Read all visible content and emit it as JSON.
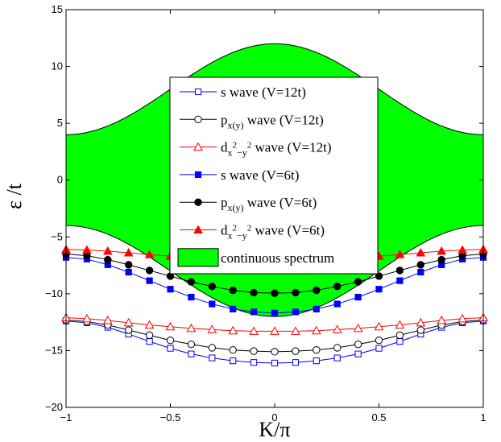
{
  "chart_data": {
    "type": "line",
    "xlabel": "K/π",
    "ylabel": "ε /t",
    "xlim": [
      -1,
      1
    ],
    "ylim": [
      -20,
      15
    ],
    "x_ticks": [
      "−1",
      "−0.5",
      "0",
      "0.5",
      "1"
    ],
    "y_ticks": [
      "15",
      "10",
      "5",
      "0",
      "−5",
      "−10",
      "−15",
      "−20"
    ],
    "grid": false,
    "legend_position": "center",
    "colors": {
      "blue": "#0000ff",
      "black": "#000000",
      "red": "#ff0000",
      "band": "#00ff00"
    },
    "band": {
      "name": "continuous spectrum",
      "upper": "4+4cos²(Kπ/2)",
      "lower": "−4−8cos²(Kπ/2)",
      "x_samples": [
        -1,
        1
      ]
    },
    "x": [
      -1.0,
      -0.9,
      -0.8,
      -0.7,
      -0.6,
      -0.5,
      -0.4,
      -0.3,
      -0.2,
      -0.1,
      0.0,
      0.1,
      0.2,
      0.3,
      0.4,
      0.5,
      0.6,
      0.7,
      0.8,
      0.9,
      1.0
    ],
    "series": [
      {
        "name": "s wave (V=12t)",
        "color": "#0000ff",
        "marker": "square-open",
        "values": [
          -12.4,
          -12.55,
          -12.95,
          -13.55,
          -14.2,
          -14.8,
          -15.3,
          -15.65,
          -15.9,
          -16.05,
          -16.1,
          -16.05,
          -15.9,
          -15.65,
          -15.3,
          -14.8,
          -14.2,
          -13.55,
          -12.95,
          -12.55,
          -12.4
        ]
      },
      {
        "name": "p_x(y) wave (V=12t)",
        "color": "#000000",
        "marker": "circle-open",
        "values": [
          -12.3,
          -12.45,
          -12.75,
          -13.2,
          -13.65,
          -14.1,
          -14.45,
          -14.75,
          -14.95,
          -15.05,
          -15.1,
          -15.05,
          -14.95,
          -14.75,
          -14.45,
          -14.1,
          -13.65,
          -13.2,
          -12.75,
          -12.45,
          -12.3
        ]
      },
      {
        "name": "d_x²−y² wave (V=12t)",
        "color": "#ff0000",
        "marker": "triangle-open",
        "values": [
          -12.1,
          -12.2,
          -12.35,
          -12.55,
          -12.75,
          -12.9,
          -13.05,
          -13.15,
          -13.25,
          -13.3,
          -13.3,
          -13.3,
          -13.25,
          -13.15,
          -13.05,
          -12.9,
          -12.75,
          -12.55,
          -12.35,
          -12.2,
          -12.1
        ]
      },
      {
        "name": "s wave (V=6t)",
        "color": "#0000ff",
        "marker": "square-filled",
        "values": [
          -6.8,
          -6.95,
          -7.45,
          -8.1,
          -8.85,
          -9.6,
          -10.3,
          -10.9,
          -11.35,
          -11.6,
          -11.7,
          -11.6,
          -11.35,
          -10.9,
          -10.3,
          -9.6,
          -8.85,
          -8.1,
          -7.45,
          -6.95,
          -6.8
        ]
      },
      {
        "name": "p_x(y) wave (V=6t)",
        "color": "#000000",
        "marker": "circle-filled",
        "values": [
          -6.5,
          -6.65,
          -7.0,
          -7.45,
          -7.95,
          -8.45,
          -8.95,
          -9.35,
          -9.7,
          -9.9,
          -9.95,
          -9.9,
          -9.7,
          -9.35,
          -8.95,
          -8.45,
          -7.95,
          -7.45,
          -7.0,
          -6.65,
          -6.5
        ]
      },
      {
        "name": "d_x²−y² wave (V=6t)",
        "color": "#ff0000",
        "marker": "triangle-filled",
        "values": [
          -6.1,
          -6.15,
          -6.25,
          -6.4,
          -6.55,
          -6.7,
          -6.85,
          -6.95,
          -7.05,
          -7.1,
          -7.1,
          -7.1,
          -7.05,
          -6.95,
          -6.85,
          -6.7,
          -6.55,
          -6.4,
          -6.25,
          -6.15,
          -6.1
        ]
      }
    ]
  },
  "legend": {
    "entries": [
      {
        "prefix": "s wave (V=12t)",
        "sub": "",
        "sup": "",
        "suffix": ""
      },
      {
        "prefix": "p",
        "sub": "x(y)",
        "sup": "",
        "suffix": " wave (V=12t)"
      },
      {
        "prefix": "d",
        "sub": "x",
        "sup": "2",
        "sub2": "−y",
        "sup2": "2",
        "suffix": " wave (V=12t)"
      },
      {
        "prefix": "s wave (V=6t)",
        "sub": "",
        "sup": "",
        "suffix": ""
      },
      {
        "prefix": "p",
        "sub": "x(y)",
        "sup": "",
        "suffix": " wave (V=6t)"
      },
      {
        "prefix": "d",
        "sub": "x",
        "sup": "2",
        "sub2": "−y",
        "sup2": "2",
        "suffix": " wave (V=6t)"
      },
      {
        "prefix": "continuous spectrum",
        "sub": "",
        "sup": "",
        "suffix": ""
      }
    ]
  }
}
